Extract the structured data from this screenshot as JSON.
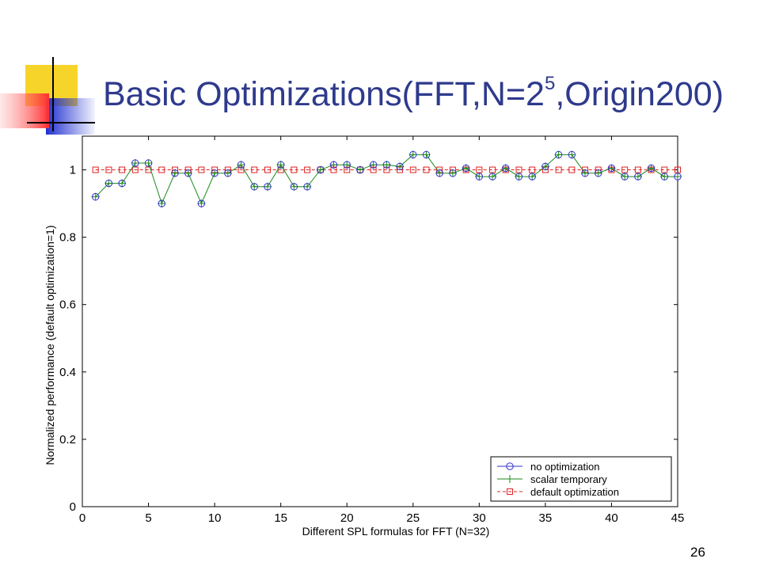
{
  "slide": {
    "title_main": "Basic Optimizations(FFT,N=2",
    "title_sup": "5",
    "title_tail": ",Origin200)",
    "page_number": "26"
  },
  "colors": {
    "title": "#2e3a8c",
    "no_optimization": "#3333cc",
    "scalar_temporary": "#1a8a1a",
    "default_optimization": "#e02020"
  },
  "chart_data": {
    "type": "line",
    "xlabel": "Different SPL formulas for FFT (N=32)",
    "ylabel": "Normalized performance (default optimization=1)",
    "xlim": [
      0,
      45
    ],
    "ylim": [
      0,
      1.1
    ],
    "xticks": [
      0,
      5,
      10,
      15,
      20,
      25,
      30,
      35,
      40,
      45
    ],
    "yticks": [
      0,
      0.2,
      0.4,
      0.6,
      0.8,
      1
    ],
    "grid": false,
    "legend_position": "bottom-right",
    "x": [
      1,
      2,
      3,
      4,
      5,
      6,
      7,
      8,
      9,
      10,
      11,
      12,
      13,
      14,
      15,
      16,
      17,
      18,
      19,
      20,
      21,
      22,
      23,
      24,
      25,
      26,
      27,
      28,
      29,
      30,
      31,
      32,
      33,
      34,
      35,
      36,
      37,
      38,
      39,
      40,
      41,
      42,
      43,
      44,
      45
    ],
    "series": [
      {
        "name": "no optimization",
        "marker": "circle",
        "values": [
          0.92,
          0.96,
          0.96,
          1.02,
          1.02,
          0.9,
          0.99,
          0.99,
          0.9,
          0.99,
          0.99,
          1.015,
          0.95,
          0.95,
          1.015,
          0.95,
          0.95,
          1.0,
          1.015,
          1.015,
          1.0,
          1.015,
          1.015,
          1.01,
          1.045,
          1.045,
          0.99,
          0.99,
          1.005,
          0.98,
          0.98,
          1.005,
          0.98,
          0.98,
          1.01,
          1.045,
          1.045,
          0.99,
          0.99,
          1.005,
          0.98,
          0.98,
          1.005,
          0.98,
          0.98
        ]
      },
      {
        "name": "scalar temporary",
        "marker": "plus",
        "values": [
          0.92,
          0.96,
          0.96,
          1.02,
          1.02,
          0.9,
          0.99,
          0.99,
          0.9,
          0.99,
          0.99,
          1.015,
          0.95,
          0.95,
          1.015,
          0.95,
          0.95,
          1.0,
          1.015,
          1.015,
          1.0,
          1.015,
          1.015,
          1.01,
          1.045,
          1.045,
          0.99,
          0.99,
          1.005,
          0.98,
          0.98,
          1.005,
          0.98,
          0.98,
          1.01,
          1.045,
          1.045,
          0.99,
          0.99,
          1.005,
          0.98,
          0.98,
          1.005,
          0.98,
          0.98
        ]
      },
      {
        "name": "default optimization",
        "marker": "square",
        "values": [
          1,
          1,
          1,
          1,
          1,
          1,
          1,
          1,
          1,
          1,
          1,
          1,
          1,
          1,
          1,
          1,
          1,
          1,
          1,
          1,
          1,
          1,
          1,
          1,
          1,
          1,
          1,
          1,
          1,
          1,
          1,
          1,
          1,
          1,
          1,
          1,
          1,
          1,
          1,
          1,
          1,
          1,
          1,
          1,
          1
        ]
      }
    ]
  }
}
